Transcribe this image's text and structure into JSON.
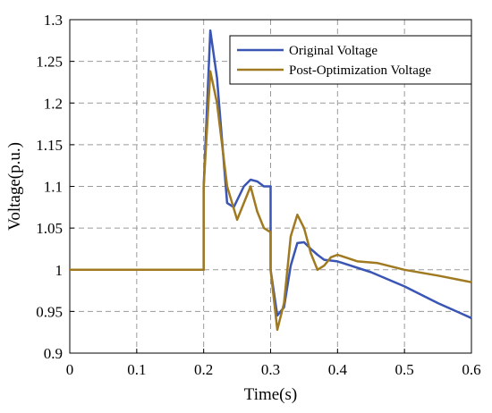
{
  "chart_data": {
    "type": "line",
    "title": "",
    "xlabel": "Time(s)",
    "ylabel": "Voltage(p.u.)",
    "xlim": [
      0,
      0.6
    ],
    "ylim": [
      0.9,
      1.3
    ],
    "xticks": [
      0,
      0.1,
      0.2,
      0.3,
      0.4,
      0.5,
      0.6
    ],
    "yticks": [
      0.9,
      0.95,
      1,
      1.05,
      1.1,
      1.15,
      1.2,
      1.25,
      1.3
    ],
    "xtick_labels": [
      "0",
      "0.1",
      "0.2",
      "0.3",
      "0.4",
      "0.5",
      "0.6"
    ],
    "ytick_labels": [
      "0.9",
      "0.95",
      "1",
      "1.05",
      "1.1",
      "1.15",
      "1.2",
      "1.25",
      "1.3"
    ],
    "grid": true,
    "legend_position": "top-right",
    "series": [
      {
        "name": "Original Voltage",
        "color": "#3a55b4",
        "x": [
          0,
          0.2,
          0.2,
          0.21,
          0.22,
          0.235,
          0.245,
          0.26,
          0.27,
          0.28,
          0.29,
          0.3,
          0.3,
          0.31,
          0.32,
          0.33,
          0.34,
          0.35,
          0.36,
          0.37,
          0.38,
          0.4,
          0.45,
          0.5,
          0.55,
          0.6
        ],
        "y": [
          1.0,
          1.0,
          1.1,
          1.287,
          1.23,
          1.08,
          1.075,
          1.1,
          1.108,
          1.106,
          1.1,
          1.1,
          1.0,
          0.945,
          0.955,
          1.005,
          1.032,
          1.033,
          1.025,
          1.018,
          1.012,
          1.01,
          0.997,
          0.98,
          0.96,
          0.942
        ]
      },
      {
        "name": "Post-Optimization Voltage",
        "color": "#a07a20",
        "x": [
          0,
          0.2,
          0.2,
          0.21,
          0.22,
          0.235,
          0.25,
          0.26,
          0.27,
          0.28,
          0.29,
          0.3,
          0.3,
          0.31,
          0.32,
          0.33,
          0.34,
          0.35,
          0.36,
          0.37,
          0.38,
          0.39,
          0.4,
          0.43,
          0.46,
          0.5,
          0.55,
          0.6
        ],
        "y": [
          1.0,
          1.0,
          1.1,
          1.238,
          1.2,
          1.1,
          1.06,
          1.08,
          1.1,
          1.07,
          1.05,
          1.045,
          1.0,
          0.928,
          0.96,
          1.04,
          1.066,
          1.05,
          1.02,
          1.0,
          1.005,
          1.015,
          1.018,
          1.01,
          1.008,
          1.0,
          0.993,
          0.985
        ]
      }
    ]
  }
}
